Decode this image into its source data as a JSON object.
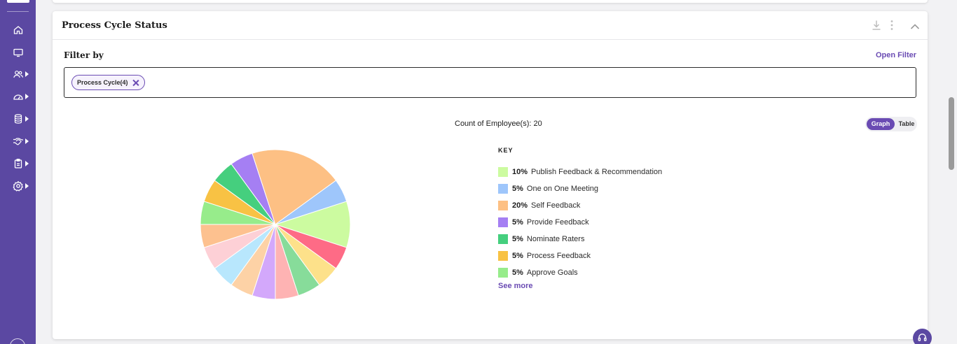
{
  "sidebar": {
    "items": [
      {
        "icon": "home-icon",
        "has_submenu": false
      },
      {
        "icon": "monitor-icon",
        "has_submenu": false
      },
      {
        "icon": "users-icon",
        "has_submenu": true
      },
      {
        "icon": "dashboard-gauge-icon",
        "has_submenu": true
      },
      {
        "icon": "database-icon",
        "has_submenu": true
      },
      {
        "icon": "handshake-icon",
        "has_submenu": true
      },
      {
        "icon": "clipboard-icon",
        "has_submenu": true
      },
      {
        "icon": "settings-gear-icon",
        "has_submenu": true
      }
    ]
  },
  "card": {
    "title": "Process Cycle Status",
    "header_icons": [
      "download-icon",
      "more-vertical-icon",
      "chevron-up-icon"
    ]
  },
  "filter": {
    "label": "Filter by",
    "open_filter_label": "Open Filter",
    "chips": [
      {
        "label": "Process Cycle(4)"
      }
    ]
  },
  "summary": {
    "count_label": "Count of Employee(s): 20"
  },
  "view_toggle": {
    "graph_label": "Graph",
    "table_label": "Table",
    "selected": "Graph"
  },
  "legend": {
    "key_title": "KEY",
    "items": [
      {
        "pct": "10%",
        "name": "Publish Feedback & Recommendation",
        "color": "#ccfba0"
      },
      {
        "pct": "5%",
        "name": "One on One Meeting",
        "color": "#9ec6fb"
      },
      {
        "pct": "20%",
        "name": "Self Feedback",
        "color": "#fdc084"
      },
      {
        "pct": "5%",
        "name": "Provide Feedback",
        "color": "#a57ff3"
      },
      {
        "pct": "5%",
        "name": "Nominate Raters",
        "color": "#45cf7e"
      },
      {
        "pct": "5%",
        "name": "Process Feedback",
        "color": "#f8c244"
      },
      {
        "pct": "5%",
        "name": "Approve Goals",
        "color": "#97ec8b"
      }
    ],
    "see_more_label": "See more"
  },
  "chart_data": {
    "type": "pie",
    "start_angle_deg": 72,
    "slices": [
      {
        "value": 10,
        "color": "#ccfba0"
      },
      {
        "value": 5,
        "color": "#fe6b86"
      },
      {
        "value": 5,
        "color": "#fde18a"
      },
      {
        "value": 5,
        "color": "#87dc9a"
      },
      {
        "value": 5,
        "color": "#feb3b3"
      },
      {
        "value": 5,
        "color": "#d3a8fb"
      },
      {
        "value": 5,
        "color": "#fdd2a6"
      },
      {
        "value": 5,
        "color": "#b8e7fd"
      },
      {
        "value": 5,
        "color": "#fdd0d6"
      },
      {
        "value": 5,
        "color": "#fdc18f"
      },
      {
        "value": 5,
        "color": "#97ec8b"
      },
      {
        "value": 5,
        "color": "#f8c244"
      },
      {
        "value": 5,
        "color": "#45cf7e"
      },
      {
        "value": 5,
        "color": "#a57ff3"
      },
      {
        "value": 20,
        "color": "#fdc084"
      },
      {
        "value": 5,
        "color": "#9ec6fb"
      }
    ]
  }
}
